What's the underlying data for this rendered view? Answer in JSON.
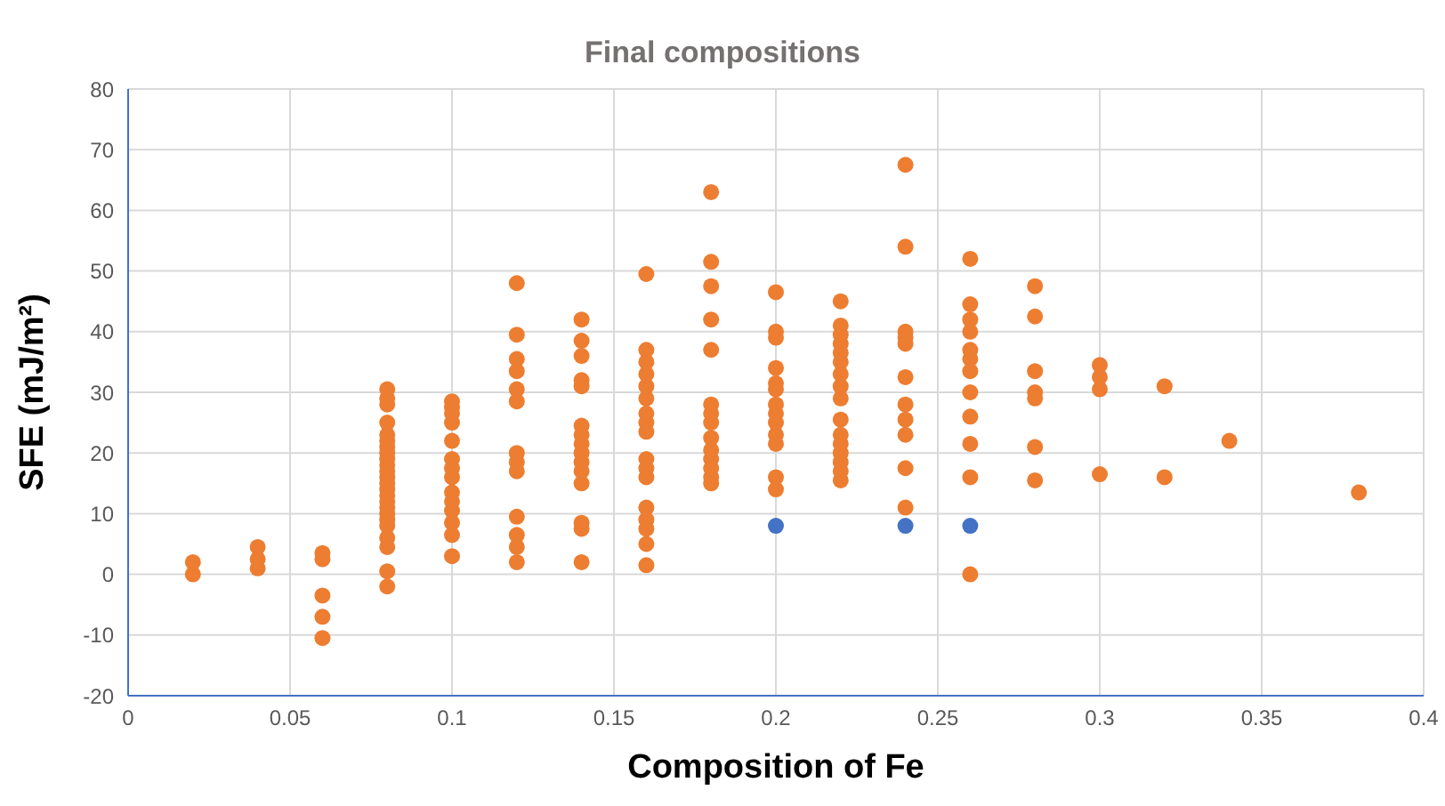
{
  "chart_data": {
    "type": "scatter",
    "title": "Final compositions",
    "xlabel": "Composition of Fe",
    "ylabel": "SFE (mJ/m²)",
    "xlim": [
      0,
      0.4
    ],
    "xticks": [
      0,
      0.05,
      0.1,
      0.15,
      0.2,
      0.25,
      0.3,
      0.35,
      0.4
    ],
    "ylim": [
      -20,
      80
    ],
    "yticks": [
      -20,
      -10,
      0,
      10,
      20,
      30,
      40,
      50,
      60,
      70,
      80
    ],
    "grid": true,
    "marker": "circle",
    "series": [
      {
        "color": "#ed7d31",
        "x": [
          0.02,
          0.02,
          0.04,
          0.04,
          0.04,
          0.06,
          0.06,
          0.06,
          0.06,
          0.06,
          0.08,
          0.08,
          0.08,
          0.08,
          0.08,
          0.08,
          0.08,
          0.08,
          0.08,
          0.08,
          0.08,
          0.08,
          0.08,
          0.08,
          0.08,
          0.08,
          0.08,
          0.08,
          0.08,
          0.08,
          0.08,
          0.08,
          0.08,
          0.08,
          0.1,
          0.1,
          0.1,
          0.1,
          0.1,
          0.1,
          0.1,
          0.1,
          0.1,
          0.1,
          0.1,
          0.1,
          0.1,
          0.1,
          0.12,
          0.12,
          0.12,
          0.12,
          0.12,
          0.12,
          0.12,
          0.12,
          0.12,
          0.12,
          0.12,
          0.12,
          0.12,
          0.14,
          0.14,
          0.14,
          0.14,
          0.14,
          0.14,
          0.14,
          0.14,
          0.14,
          0.14,
          0.14,
          0.14,
          0.14,
          0.14,
          0.14,
          0.16,
          0.16,
          0.16,
          0.16,
          0.16,
          0.16,
          0.16,
          0.16,
          0.16,
          0.16,
          0.16,
          0.16,
          0.16,
          0.16,
          0.16,
          0.16,
          0.16,
          0.18,
          0.18,
          0.18,
          0.18,
          0.18,
          0.18,
          0.18,
          0.18,
          0.18,
          0.18,
          0.18,
          0.18,
          0.18,
          0.18,
          0.2,
          0.2,
          0.2,
          0.2,
          0.2,
          0.2,
          0.2,
          0.2,
          0.2,
          0.2,
          0.2,
          0.2,
          0.2,
          0.22,
          0.22,
          0.22,
          0.22,
          0.22,
          0.22,
          0.22,
          0.22,
          0.22,
          0.22,
          0.22,
          0.22,
          0.22,
          0.22,
          0.22,
          0.22,
          0.24,
          0.24,
          0.24,
          0.24,
          0.24,
          0.24,
          0.24,
          0.24,
          0.24,
          0.24,
          0.24,
          0.26,
          0.26,
          0.26,
          0.26,
          0.26,
          0.26,
          0.26,
          0.26,
          0.26,
          0.26,
          0.26,
          0.26,
          0.28,
          0.28,
          0.28,
          0.28,
          0.28,
          0.28,
          0.28,
          0.3,
          0.3,
          0.3,
          0.3,
          0.32,
          0.32,
          0.34,
          0.38
        ],
        "values": [
          0,
          2,
          1,
          2.5,
          4.5,
          2.5,
          3.5,
          -3.5,
          -7,
          -10.5,
          -2,
          0.5,
          4.5,
          6,
          8,
          9,
          10,
          11,
          12,
          13,
          14,
          15,
          16,
          17,
          18,
          19,
          20,
          21,
          22,
          23,
          25,
          28,
          29,
          30.5,
          3,
          6.5,
          8.5,
          10.5,
          12,
          13.5,
          16,
          17.5,
          19,
          22,
          25,
          26.5,
          27.5,
          28.5,
          2,
          4.5,
          6.5,
          9.5,
          17,
          18.5,
          20,
          28.5,
          30.5,
          33.5,
          35.5,
          39.5,
          48,
          2,
          7.5,
          8.5,
          15,
          17,
          18.5,
          20,
          21.5,
          23,
          24.5,
          31,
          32,
          36,
          38.5,
          42,
          1.5,
          5,
          7.5,
          9,
          11,
          16,
          17.5,
          19,
          23.5,
          25,
          26.5,
          29,
          31,
          33,
          35,
          37,
          49.5,
          15,
          16,
          17.5,
          19,
          20.5,
          22.5,
          25,
          26.5,
          28,
          37,
          42,
          47.5,
          51.5,
          63,
          14,
          16,
          21.5,
          23,
          25,
          26.5,
          28,
          30.5,
          31.5,
          34,
          39,
          40,
          46.5,
          15.5,
          17,
          18.5,
          20,
          21.5,
          23,
          25.5,
          29,
          31,
          33,
          35,
          36.5,
          38,
          39.5,
          41,
          45,
          11,
          17.5,
          23,
          25.5,
          28,
          32.5,
          38,
          39,
          40,
          54,
          67.5,
          0,
          16,
          21.5,
          26,
          30,
          33.5,
          35.5,
          37,
          40,
          42,
          44.5,
          52,
          15.5,
          21,
          29,
          30,
          33.5,
          42.5,
          47.5,
          16.5,
          30.5,
          32.5,
          34.5,
          16,
          31,
          22,
          13.5
        ]
      },
      {
        "color": "#4472c4",
        "x": [
          0.2,
          0.24,
          0.26
        ],
        "values": [
          8,
          8,
          8
        ]
      }
    ]
  }
}
